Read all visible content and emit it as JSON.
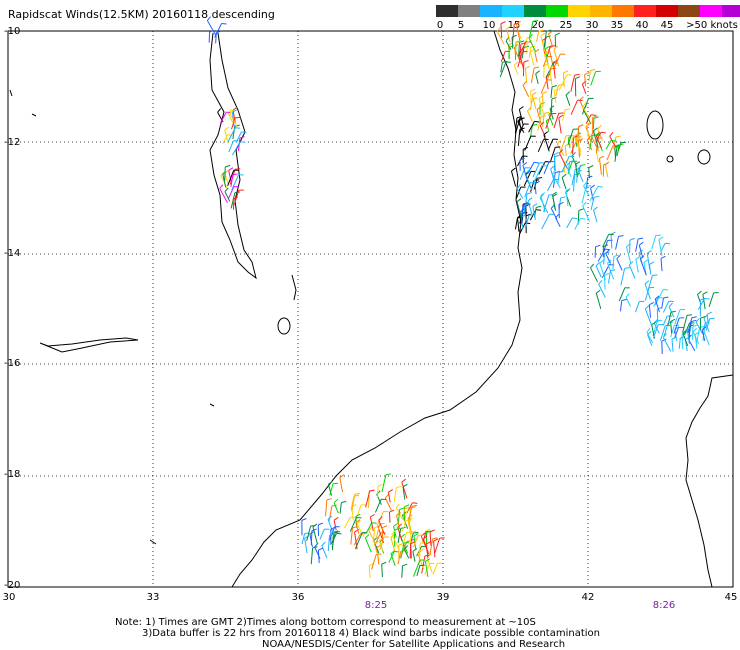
{
  "title": "Rapidscat Winds(12.5KM) 20160118 descending",
  "legend": {
    "colors": [
      "#2e2e2e",
      "#808080",
      "#19b3ff",
      "#1fd2ff",
      "#008c3c",
      "#00d800",
      "#ffd400",
      "#ffb400",
      "#ff7800",
      "#ff2020",
      "#d40000",
      "#8c4614",
      "#ff00ff",
      "#b400d4",
      "#5a00a0"
    ],
    "ticks": [
      "0",
      "5",
      "10",
      "15",
      "20",
      "25",
      "30",
      "35",
      "40",
      "45",
      ">50 knots"
    ]
  },
  "axes": {
    "lat_labels": [
      "-10",
      "-12",
      "-14",
      "-16",
      "-18",
      "-20"
    ],
    "lon_labels": [
      "30",
      "33",
      "36",
      "39",
      "42",
      "45"
    ]
  },
  "pass_times": [
    "8:25",
    "8:26"
  ],
  "notes": [
    "Note: 1) Times are GMT 2)Times along bottom correspond to measurement at ~10S",
    "3)Data buffer is 22 hrs from 20160118 4) Black wind barbs indicate possible contamination",
    "NOAA/NESDIS/Center for Satellite Applications and Research"
  ]
}
